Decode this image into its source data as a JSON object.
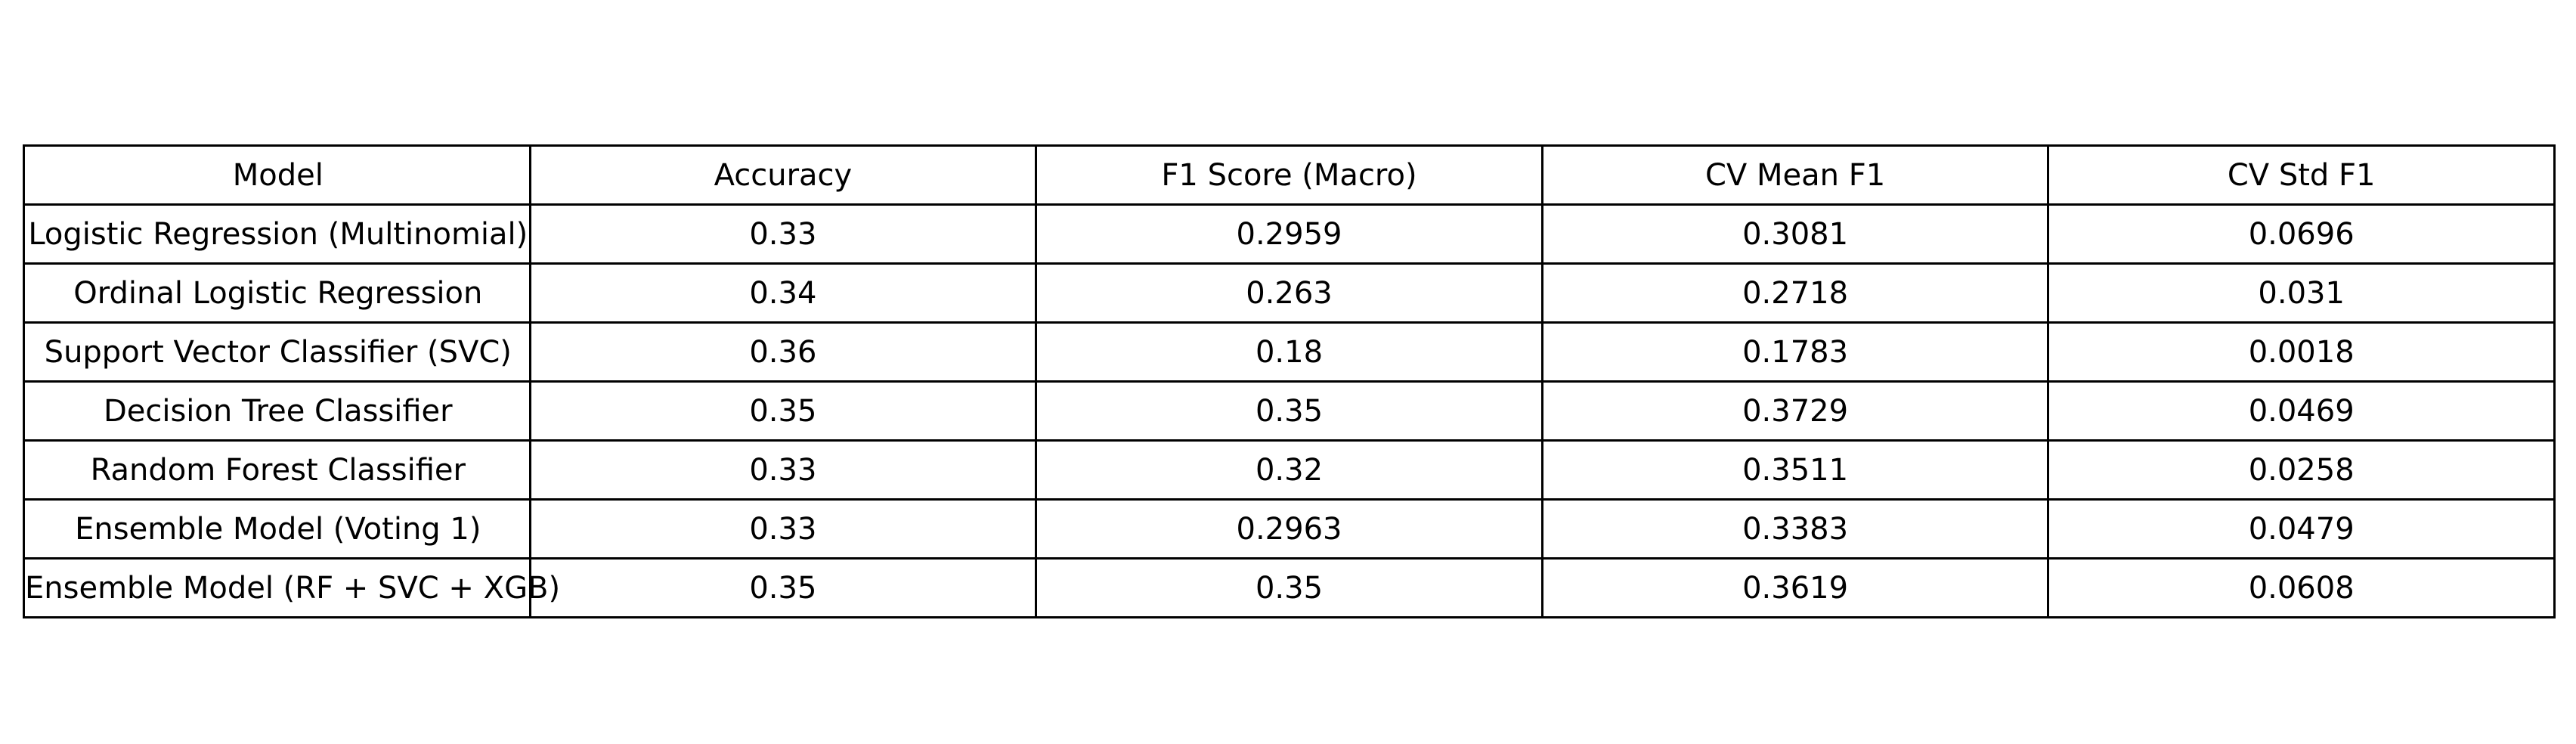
{
  "chart_data": {
    "type": "table",
    "columns": [
      "Model",
      "Accuracy",
      "F1 Score (Macro)",
      "CV Mean F1",
      "CV Std F1"
    ],
    "rows": [
      [
        "Logistic Regression (Multinomial)",
        "0.33",
        "0.2959",
        "0.3081",
        "0.0696"
      ],
      [
        "Ordinal Logistic Regression",
        "0.34",
        "0.263",
        "0.2718",
        "0.031"
      ],
      [
        "Support Vector Classifier (SVC)",
        "0.36",
        "0.18",
        "0.1783",
        "0.0018"
      ],
      [
        "Decision Tree Classifier",
        "0.35",
        "0.35",
        "0.3729",
        "0.0469"
      ],
      [
        "Random Forest Classifier",
        "0.33",
        "0.32",
        "0.3511",
        "0.0258"
      ],
      [
        "Ensemble Model (Voting 1)",
        "0.33",
        "0.2963",
        "0.3383",
        "0.0479"
      ],
      [
        "Ensemble Model (RF + SVC + XGB)",
        "0.35",
        "0.35",
        "0.3619",
        "0.0608"
      ]
    ]
  }
}
